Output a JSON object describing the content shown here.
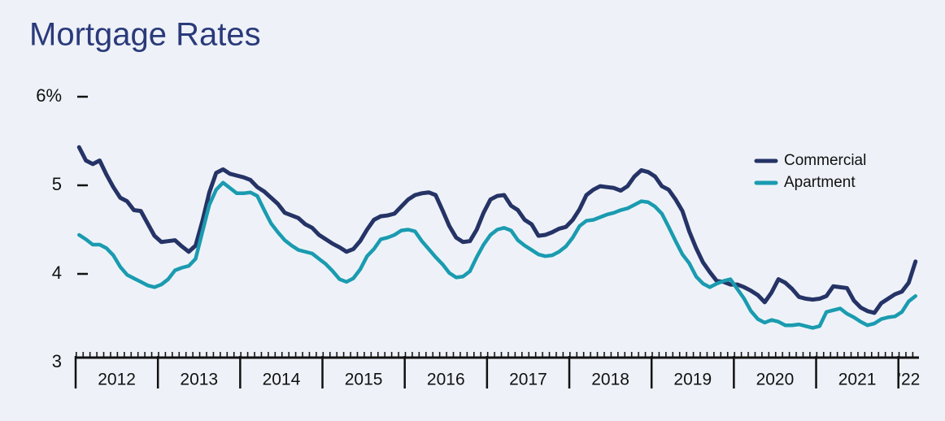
{
  "chart_data": {
    "type": "line",
    "title": "Mortgage Rates",
    "x": [
      2012.042,
      2012.125,
      2012.208,
      2012.292,
      2012.375,
      2012.458,
      2012.542,
      2012.625,
      2012.708,
      2012.792,
      2012.875,
      2012.958,
      2013.042,
      2013.125,
      2013.208,
      2013.292,
      2013.375,
      2013.458,
      2013.542,
      2013.625,
      2013.708,
      2013.792,
      2013.875,
      2013.958,
      2014.042,
      2014.125,
      2014.208,
      2014.292,
      2014.375,
      2014.458,
      2014.542,
      2014.625,
      2014.708,
      2014.792,
      2014.875,
      2014.958,
      2015.042,
      2015.125,
      2015.208,
      2015.292,
      2015.375,
      2015.458,
      2015.542,
      2015.625,
      2015.708,
      2015.792,
      2015.875,
      2015.958,
      2016.042,
      2016.125,
      2016.208,
      2016.292,
      2016.375,
      2016.458,
      2016.542,
      2016.625,
      2016.708,
      2016.792,
      2016.875,
      2016.958,
      2017.042,
      2017.125,
      2017.208,
      2017.292,
      2017.375,
      2017.458,
      2017.542,
      2017.625,
      2017.708,
      2017.792,
      2017.875,
      2017.958,
      2018.042,
      2018.125,
      2018.208,
      2018.292,
      2018.375,
      2018.458,
      2018.542,
      2018.625,
      2018.708,
      2018.792,
      2018.875,
      2018.958,
      2019.042,
      2019.125,
      2019.208,
      2019.292,
      2019.375,
      2019.458,
      2019.542,
      2019.625,
      2019.708,
      2019.792,
      2019.875,
      2019.958,
      2020.042,
      2020.125,
      2020.208,
      2020.292,
      2020.375,
      2020.458,
      2020.542,
      2020.625,
      2020.708,
      2020.792,
      2020.875,
      2020.958,
      2021.042,
      2021.125,
      2021.208,
      2021.292,
      2021.375,
      2021.458,
      2021.542,
      2021.625,
      2021.708,
      2021.792,
      2021.875,
      2021.958,
      2022.042,
      2022.125,
      2022.208
    ],
    "series": [
      {
        "name": "Commercial",
        "color": "#253366",
        "values": [
          5.43,
          5.28,
          5.24,
          5.28,
          5.12,
          4.98,
          4.86,
          4.82,
          4.72,
          4.71,
          4.57,
          4.43,
          4.36,
          4.37,
          4.38,
          4.31,
          4.25,
          4.32,
          4.6,
          4.92,
          5.14,
          5.18,
          5.13,
          5.11,
          5.09,
          5.06,
          4.98,
          4.93,
          4.86,
          4.79,
          4.69,
          4.66,
          4.63,
          4.56,
          4.52,
          4.44,
          4.39,
          4.34,
          4.3,
          4.25,
          4.28,
          4.37,
          4.5,
          4.61,
          4.65,
          4.66,
          4.68,
          4.76,
          4.84,
          4.89,
          4.91,
          4.92,
          4.89,
          4.72,
          4.54,
          4.41,
          4.36,
          4.37,
          4.5,
          4.69,
          4.84,
          4.88,
          4.89,
          4.77,
          4.72,
          4.61,
          4.56,
          4.43,
          4.44,
          4.47,
          4.51,
          4.53,
          4.61,
          4.73,
          4.89,
          4.95,
          4.99,
          4.98,
          4.97,
          4.94,
          4.99,
          5.1,
          5.17,
          5.15,
          5.1,
          4.99,
          4.95,
          4.84,
          4.71,
          4.48,
          4.29,
          4.13,
          4.02,
          3.92,
          3.91,
          3.88,
          3.88,
          3.85,
          3.81,
          3.76,
          3.68,
          3.79,
          3.94,
          3.9,
          3.83,
          3.74,
          3.72,
          3.71,
          3.72,
          3.75,
          3.86,
          3.85,
          3.84,
          3.7,
          3.62,
          3.58,
          3.56,
          3.67,
          3.72,
          3.77,
          3.8,
          3.9,
          4.14
        ]
      },
      {
        "name": "Apartment",
        "color": "#1a9bb0",
        "values": [
          4.44,
          4.39,
          4.33,
          4.33,
          4.29,
          4.21,
          4.08,
          3.99,
          3.95,
          3.91,
          3.87,
          3.85,
          3.88,
          3.94,
          4.04,
          4.07,
          4.09,
          4.17,
          4.48,
          4.78,
          4.95,
          5.03,
          4.97,
          4.91,
          4.91,
          4.92,
          4.88,
          4.72,
          4.57,
          4.47,
          4.38,
          4.32,
          4.27,
          4.25,
          4.23,
          4.17,
          4.11,
          4.03,
          3.94,
          3.91,
          3.95,
          4.05,
          4.2,
          4.28,
          4.39,
          4.41,
          4.44,
          4.49,
          4.5,
          4.48,
          4.37,
          4.28,
          4.19,
          4.11,
          4.01,
          3.96,
          3.97,
          4.03,
          4.19,
          4.33,
          4.44,
          4.5,
          4.52,
          4.49,
          4.38,
          4.32,
          4.27,
          4.22,
          4.2,
          4.21,
          4.25,
          4.31,
          4.41,
          4.54,
          4.6,
          4.61,
          4.64,
          4.67,
          4.69,
          4.72,
          4.74,
          4.78,
          4.82,
          4.81,
          4.76,
          4.68,
          4.53,
          4.37,
          4.22,
          4.12,
          3.97,
          3.89,
          3.85,
          3.89,
          3.92,
          3.94,
          3.83,
          3.72,
          3.58,
          3.49,
          3.45,
          3.48,
          3.46,
          3.42,
          3.42,
          3.43,
          3.41,
          3.39,
          3.41,
          3.57,
          3.59,
          3.61,
          3.55,
          3.51,
          3.46,
          3.42,
          3.44,
          3.49,
          3.51,
          3.52,
          3.57,
          3.69,
          3.75
        ]
      }
    ],
    "xlim": [
      2012,
      2022.25
    ],
    "xticks": [
      2012,
      2013,
      2014,
      2015,
      2016,
      2017,
      2018,
      2019,
      2020,
      2021,
      {
        "value": 2022,
        "label": "’22"
      }
    ],
    "ylim": [
      3,
      6
    ],
    "yticks": [
      {
        "value": 6,
        "label": "6%"
      },
      5,
      4,
      3
    ],
    "grid": false,
    "legend": "upper right"
  }
}
